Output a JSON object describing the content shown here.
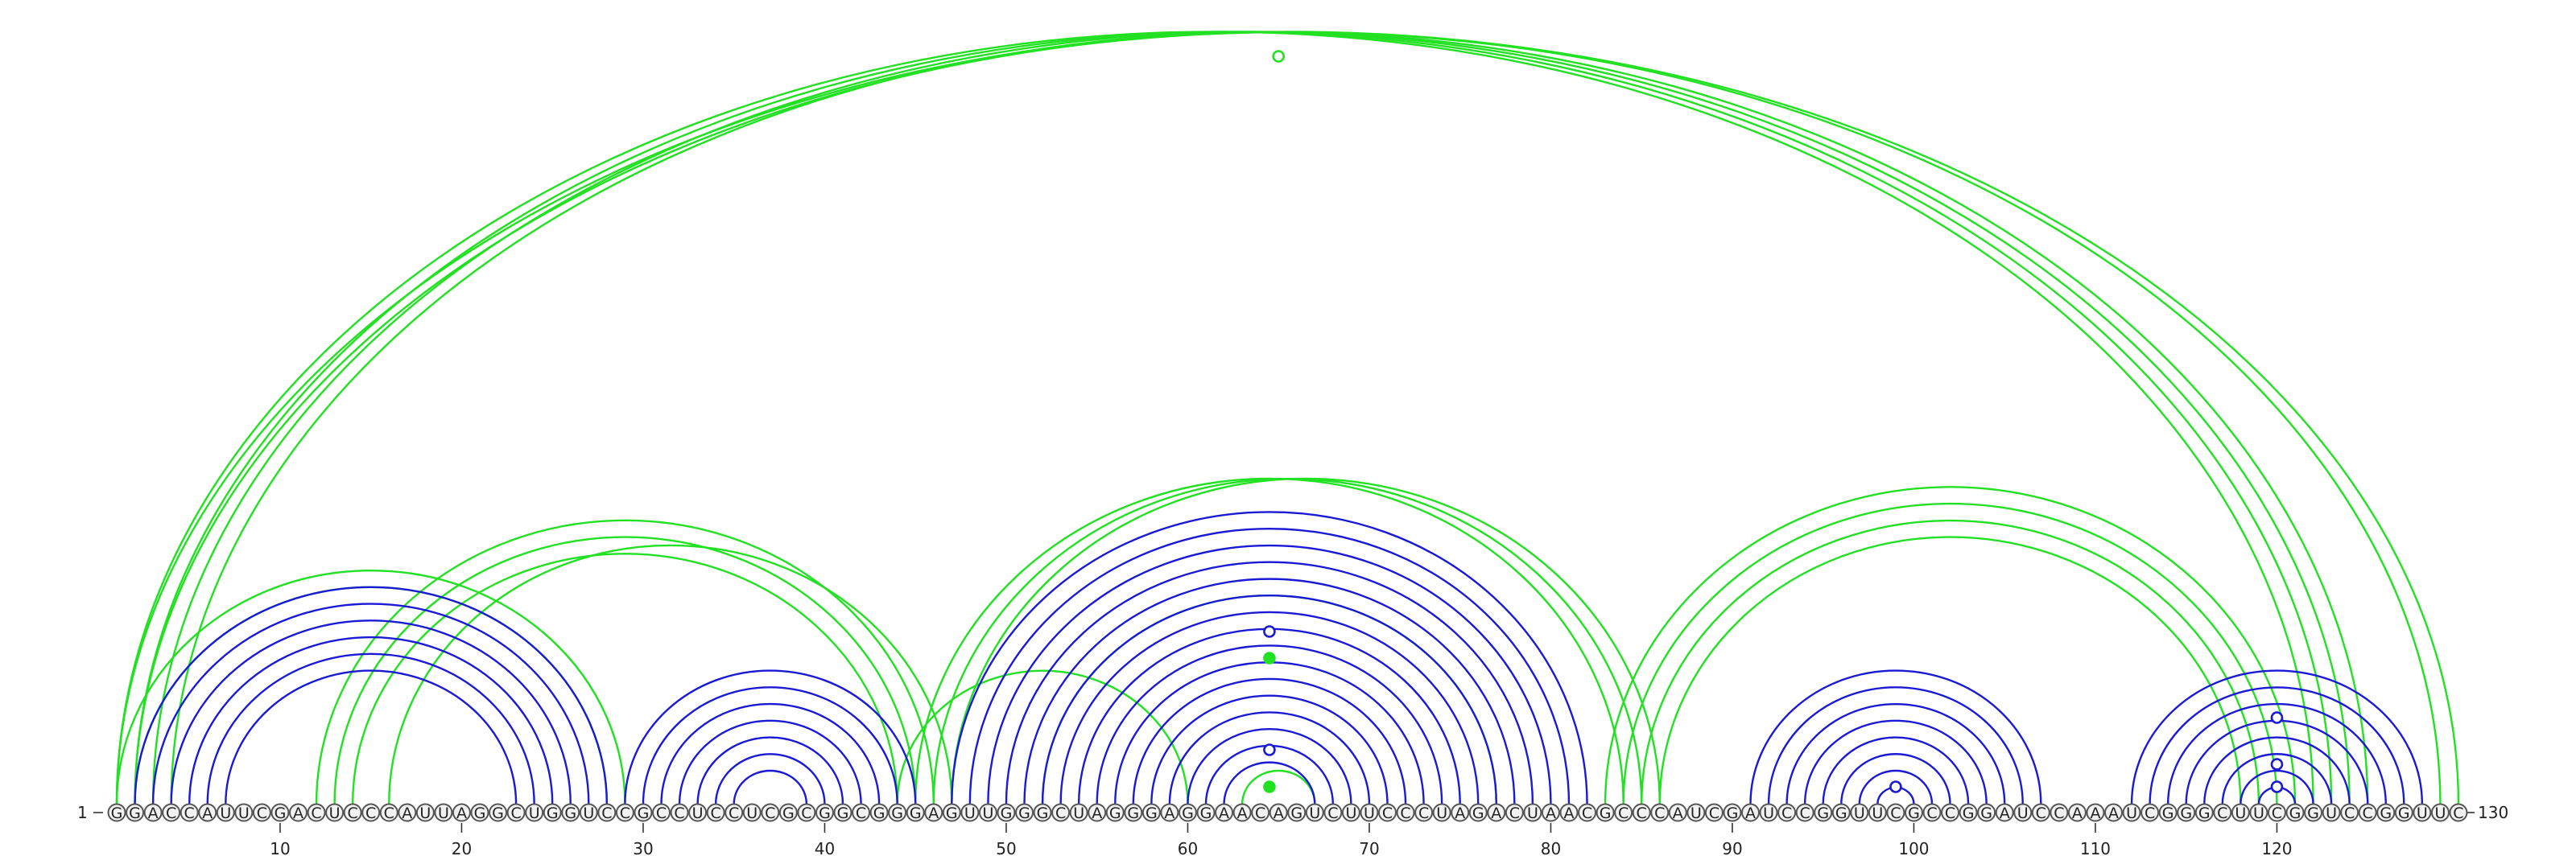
{
  "sequence": "GGACCAUUCGACUCCCAUUAGGCUGGUCCGCCUCCUCGCGGCGGGAGUUGGGCUAGGGAGGAACAGUCUUCCCUAGACUAACGCCCAUCGAUCCGGUUCGCCGGAUCCAAAUCGGGCUUCGGUCCGGUUC",
  "start_label": "1",
  "end_label": "130",
  "ticks": [
    "10",
    "20",
    "30",
    "40",
    "50",
    "60",
    "70",
    "80",
    "90",
    "100",
    "110",
    "120"
  ],
  "colors": {
    "blue": "#1a1ad6",
    "green": "#22e022"
  },
  "chart_data": {
    "type": "arc-diagram",
    "length": 130,
    "nucleotide_span_note": "pairs given as [i, j] 1-based nucleotide positions",
    "series": [
      {
        "name": "blue-pairs",
        "color": "blue",
        "pairs": [
          [
            2,
            28
          ],
          [
            3,
            27
          ],
          [
            4,
            26
          ],
          [
            5,
            25
          ],
          [
            6,
            24
          ],
          [
            7,
            23
          ],
          [
            29,
            45
          ],
          [
            30,
            44
          ],
          [
            31,
            43
          ],
          [
            32,
            42
          ],
          [
            33,
            41
          ],
          [
            34,
            40
          ],
          [
            35,
            39
          ],
          [
            47,
            82
          ],
          [
            48,
            81
          ],
          [
            49,
            80
          ],
          [
            50,
            79
          ],
          [
            51,
            78
          ],
          [
            52,
            77
          ],
          [
            53,
            76
          ],
          [
            54,
            75
          ],
          [
            55,
            74
          ],
          [
            56,
            73
          ],
          [
            57,
            72
          ],
          [
            58,
            71
          ],
          [
            59,
            70
          ],
          [
            60,
            69
          ],
          [
            61,
            68
          ],
          [
            62,
            67
          ],
          [
            91,
            107
          ],
          [
            92,
            106
          ],
          [
            93,
            105
          ],
          [
            94,
            104
          ],
          [
            95,
            103
          ],
          [
            96,
            102
          ],
          [
            97,
            101
          ],
          [
            98,
            100
          ],
          [
            112,
            128
          ],
          [
            113,
            127
          ],
          [
            114,
            126
          ],
          [
            115,
            125
          ],
          [
            116,
            124
          ],
          [
            117,
            123
          ],
          [
            118,
            122
          ],
          [
            119,
            121
          ]
        ]
      },
      {
        "name": "green-pairs",
        "color": "green",
        "pairs": [
          [
            1,
            122
          ],
          [
            2,
            123
          ],
          [
            3,
            124
          ],
          [
            4,
            125
          ],
          [
            1,
            130
          ],
          [
            2,
            129
          ],
          [
            1,
            29
          ],
          [
            2,
            28
          ],
          [
            12,
            46
          ],
          [
            13,
            45
          ],
          [
            14,
            44
          ],
          [
            16,
            47
          ],
          [
            45,
            84
          ],
          [
            46,
            85
          ],
          [
            47,
            86
          ],
          [
            44,
            60
          ],
          [
            52,
            77
          ],
          [
            63,
            67
          ],
          [
            83,
            121
          ],
          [
            84,
            120
          ],
          [
            85,
            119
          ],
          [
            86,
            118
          ]
        ]
      }
    ],
    "markers": [
      {
        "position": 65,
        "height_rank": 1,
        "type": "open",
        "color": "green"
      },
      {
        "position": 64.5,
        "height_rank": 2,
        "type": "open",
        "color": "blue"
      },
      {
        "position": 64.5,
        "height_rank": 3,
        "type": "filled",
        "color": "green"
      },
      {
        "position": 64.5,
        "height_rank": 4,
        "type": "open",
        "color": "blue"
      },
      {
        "position": 64.5,
        "height_rank": 5,
        "type": "filled",
        "color": "green"
      },
      {
        "position": 99,
        "height_rank": 6,
        "type": "open",
        "color": "blue"
      },
      {
        "position": 120,
        "height_rank": 7,
        "type": "open",
        "color": "blue"
      },
      {
        "position": 120,
        "height_rank": 8,
        "type": "open",
        "color": "blue"
      },
      {
        "position": 120,
        "height_rank": 9,
        "type": "open",
        "color": "blue"
      }
    ]
  }
}
